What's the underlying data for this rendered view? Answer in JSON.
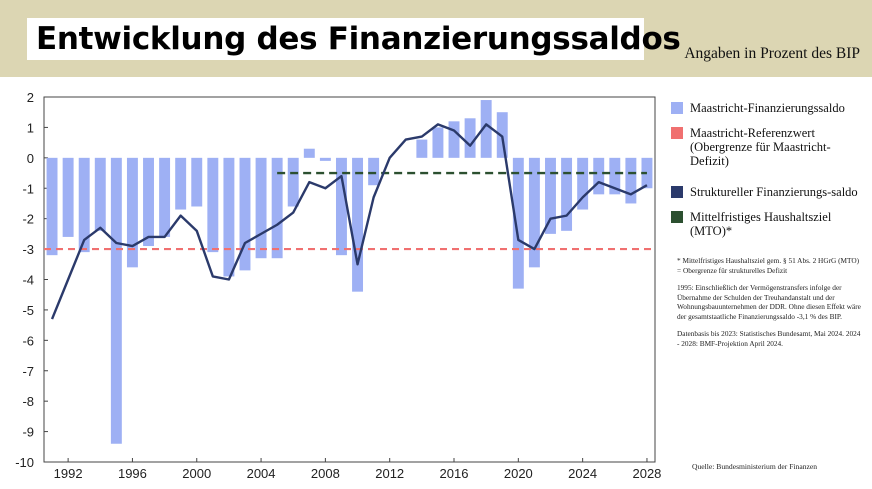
{
  "title": "Entwicklung des Finanzierungssaldos",
  "subtitle": "Angaben in Prozent des BIP",
  "colors": {
    "bars": "#9eb0f4",
    "reference": "#f07070",
    "structural": "#2b3a6b",
    "mto": "#2c5030",
    "header_bg": "#dcd6b3"
  },
  "legend": [
    {
      "label": "Maastricht-Finanzierungssaldo",
      "color": "#9eb0f4"
    },
    {
      "label": "Maastricht-Referenzwert (Obergrenze für Maastricht-Defizit)",
      "color": "#f07070"
    },
    {
      "label": "Struktureller Finanzierungs-saldo",
      "color": "#2b3a6b"
    },
    {
      "label": "Mittelfristiges Haushaltsziel (MTO)*",
      "color": "#2c5030"
    }
  ],
  "notes": [
    "* Mittelfristiges Haushaltsziel gem. § 51 Abs. 2 HGrG (MTO) = Obergrenze für strukturelles Defizit",
    "1995: Einschließlich der Vermögenstransfers infolge der Übernahme der Schulden der Treuhandanstalt und der Wohnungsbauunternehmen der DDR. Ohne diesen Effekt wäre der gesamtstaatliche Finanzierungssaldo -3,1 % des BIP.",
    "Datenbasis bis 2023: Statistisches Bundesamt, Mai 2024. 2024 - 2028: BMF-Projektion April 2024."
  ],
  "source": "Quelle: Bundesministerium der Finanzen",
  "chart_data": {
    "type": "bar",
    "x": [
      1991,
      1992,
      1993,
      1994,
      1995,
      1996,
      1997,
      1998,
      1999,
      2000,
      2001,
      2002,
      2003,
      2004,
      2005,
      2006,
      2007,
      2008,
      2009,
      2010,
      2011,
      2012,
      2013,
      2014,
      2015,
      2016,
      2017,
      2018,
      2019,
      2020,
      2021,
      2022,
      2023,
      2024,
      2025,
      2026,
      2027,
      2028
    ],
    "x_tick_labels": [
      "1992",
      "1996",
      "2000",
      "2004",
      "2008",
      "2012",
      "2016",
      "2020",
      "2024",
      "2028"
    ],
    "x_ticks": [
      1992,
      1996,
      2000,
      2004,
      2008,
      2012,
      2016,
      2020,
      2024,
      2028
    ],
    "y_tick_labels": [
      "2",
      "1",
      "0",
      "-1",
      "-2",
      "-3",
      "-4",
      "-5",
      "-6",
      "-7",
      "-8",
      "-9",
      "-10"
    ],
    "ylim": [
      -10,
      2
    ],
    "series": [
      {
        "name": "Maastricht-Finanzierungssaldo",
        "type": "bar",
        "values": [
          -3.2,
          -2.6,
          -3.1,
          -2.4,
          -9.4,
          -3.6,
          -2.9,
          -2.6,
          -1.7,
          -1.6,
          -3.1,
          -3.9,
          -3.7,
          -3.3,
          -3.3,
          -1.6,
          0.3,
          -0.1,
          -3.2,
          -4.4,
          -0.9,
          0.0,
          0.0,
          0.6,
          1.0,
          1.2,
          1.3,
          1.9,
          1.5,
          -4.3,
          -3.6,
          -2.5,
          -2.4,
          -1.7,
          -1.2,
          -1.2,
          -1.5,
          -1.0
        ]
      },
      {
        "name": "Struktureller Finanzierungssaldo",
        "type": "line",
        "values": [
          -5.3,
          -4.0,
          -2.7,
          -2.3,
          -2.8,
          -2.9,
          -2.6,
          -2.6,
          -1.9,
          -2.4,
          -3.9,
          -4.0,
          -2.8,
          -2.5,
          -2.2,
          -1.8,
          -0.8,
          -1.0,
          -0.6,
          -3.5,
          -1.3,
          0.0,
          0.6,
          0.7,
          1.1,
          0.9,
          0.4,
          1.1,
          0.7,
          -2.7,
          -3.0,
          -2.0,
          -1.9,
          -1.3,
          -0.8,
          -1.0,
          -1.2,
          -0.9
        ]
      },
      {
        "name": "Maastricht-Referenzwert",
        "type": "hline",
        "value": -3.0
      },
      {
        "name": "Mittelfristiges Haushaltsziel (MTO)",
        "type": "hline",
        "value": -0.5,
        "x_start": 2005,
        "x_end": 2028
      }
    ]
  }
}
